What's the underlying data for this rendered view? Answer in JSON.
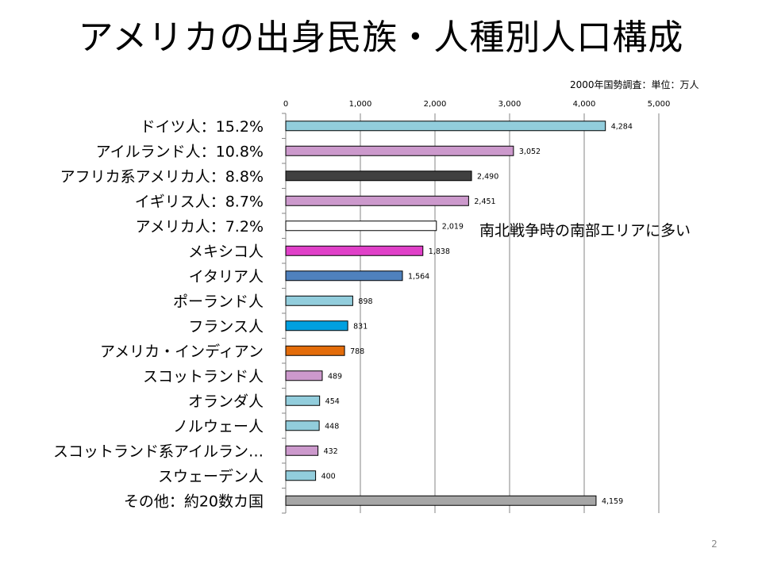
{
  "slide": {
    "title": "アメリカの出身民族・人種別人口構成",
    "source_note": "2000年国勢調査：単位：万人",
    "annotation": "南北戦争時の南部エリアに多い",
    "page_number": "2"
  },
  "chart_data": {
    "type": "bar",
    "orientation": "horizontal",
    "title": "アメリカの出身民族・人種別人口構成",
    "unit": "万人",
    "xlim": [
      0,
      5000
    ],
    "xticks": [
      "0",
      "1,000",
      "2,000",
      "3,000",
      "4,000",
      "5,000"
    ],
    "grid": true,
    "categories": [
      "ドイツ人：15.2%",
      "アイルランド人：10.8%",
      "アフリカ系アメリカ人：8.8%",
      "イギリス人：8.7%",
      "アメリカ人：7.2%",
      "メキシコ人",
      "イタリア人",
      "ポーランド人",
      "フランス人",
      "アメリカ・インディアン",
      "スコットランド人",
      "オランダ人",
      "ノルウェー人",
      "スコットランド系アイルラン…",
      "スウェーデン人",
      "その他：約20数カ国"
    ],
    "values": [
      4284,
      3052,
      2490,
      2451,
      2019,
      1838,
      1564,
      898,
      831,
      788,
      489,
      454,
      448,
      432,
      400,
      4159
    ],
    "value_labels": [
      "4,284",
      "3,052",
      "2,490",
      "2,451",
      "2,019",
      "1,838",
      "1,564",
      "898",
      "831",
      "788",
      "489",
      "454",
      "448",
      "432",
      "400",
      "4,159"
    ],
    "colors": [
      "#92CDDC",
      "#CC99CC",
      "#404040",
      "#CC99CC",
      "#FFFFFF",
      "#E040C8",
      "#4F81BD",
      "#92CDDC",
      "#00A0E0",
      "#E36C0A",
      "#CC99CC",
      "#92CDDC",
      "#92CDDC",
      "#CC99CC",
      "#92CDDC",
      "#A6A6A6"
    ]
  }
}
